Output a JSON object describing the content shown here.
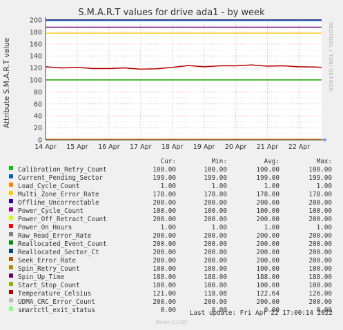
{
  "title": "S.M.A.R.T values for drive ada1 - by week",
  "side_label": "RRDTOOL / TOBI OETIKER",
  "footer": "Munin 2.0.65",
  "last_update": "Last update: Fri Apr 22 17:00:14 2022",
  "legend_headers": {
    "cur": "Cur:",
    "min": "Min:",
    "avg": "Avg:",
    "max": "Max:"
  },
  "chart_data": {
    "type": "line",
    "title": "S.M.A.R.T values for drive ada1 - by week",
    "xlabel": "",
    "ylabel": "Attribute S.M.A.R.T value",
    "ylim": [
      0,
      200
    ],
    "yticks": [
      0,
      20,
      40,
      60,
      80,
      100,
      120,
      140,
      160,
      180,
      200
    ],
    "xlim": [
      "2022-04-14 00:00",
      "2022-04-22 17:00"
    ],
    "xticks": [
      "14 Apr",
      "15 Apr",
      "16 Apr",
      "17 Apr",
      "18 Apr",
      "19 Apr",
      "20 Apr",
      "21 Apr",
      "22 Apr"
    ],
    "grid": true,
    "legend_position": "bottom",
    "temperature_x": [
      "2022-04-14 00:00",
      "2022-04-14 12:00",
      "2022-04-15 00:00",
      "2022-04-15 12:00",
      "2022-04-16 00:00",
      "2022-04-16 12:00",
      "2022-04-17 00:00",
      "2022-04-17 12:00",
      "2022-04-18 00:00",
      "2022-04-18 12:00",
      "2022-04-19 00:00",
      "2022-04-19 12:00",
      "2022-04-20 00:00",
      "2022-04-20 12:00",
      "2022-04-21 00:00",
      "2022-04-21 12:00",
      "2022-04-22 00:00",
      "2022-04-22 12:00",
      "2022-04-22 17:00"
    ],
    "series": [
      {
        "name": "Calibration_Retry_Count",
        "color": "#00cc00",
        "cur": "100.00",
        "min": "100.00",
        "avg": "100.00",
        "max": "100.00"
      },
      {
        "name": "Current_Pending_Sector",
        "color": "#0066b3",
        "cur": "199.00",
        "min": "199.00",
        "avg": "199.00",
        "max": "199.00"
      },
      {
        "name": "Load_Cycle_Count",
        "color": "#ff8000",
        "cur": "1.00",
        "min": "1.00",
        "avg": "1.00",
        "max": "1.00"
      },
      {
        "name": "Multi_Zone_Error_Rate",
        "color": "#ffcc00",
        "cur": "178.00",
        "min": "178.00",
        "avg": "178.00",
        "max": "178.00"
      },
      {
        "name": "Offline_Uncorrectable",
        "color": "#330099",
        "cur": "200.00",
        "min": "200.00",
        "avg": "200.00",
        "max": "200.00"
      },
      {
        "name": "Power_Cycle_Count",
        "color": "#990099",
        "cur": "100.00",
        "min": "100.00",
        "avg": "100.00",
        "max": "100.00"
      },
      {
        "name": "Power_Off_Retract_Count",
        "color": "#ccff00",
        "cur": "200.00",
        "min": "200.00",
        "avg": "200.00",
        "max": "200.00"
      },
      {
        "name": "Power_On_Hours",
        "color": "#ff0000",
        "cur": "1.00",
        "min": "1.00",
        "avg": "1.00",
        "max": "1.00"
      },
      {
        "name": "Raw_Read_Error_Rate",
        "color": "#808080",
        "cur": "200.00",
        "min": "200.00",
        "avg": "200.00",
        "max": "200.00"
      },
      {
        "name": "Reallocated_Event_Count",
        "color": "#008f00",
        "cur": "200.00",
        "min": "200.00",
        "avg": "200.00",
        "max": "200.00"
      },
      {
        "name": "Reallocated_Sector_Ct",
        "color": "#00487d",
        "cur": "200.00",
        "min": "200.00",
        "avg": "200.00",
        "max": "200.00"
      },
      {
        "name": "Seek_Error_Rate",
        "color": "#b35a00",
        "cur": "200.00",
        "min": "200.00",
        "avg": "200.00",
        "max": "200.00"
      },
      {
        "name": "Spin_Retry_Count",
        "color": "#b38f00",
        "cur": "100.00",
        "min": "100.00",
        "avg": "100.00",
        "max": "100.00"
      },
      {
        "name": "Spin_Up_Time",
        "color": "#6b006b",
        "cur": "188.00",
        "min": "188.00",
        "avg": "188.00",
        "max": "188.00"
      },
      {
        "name": "Start_Stop_Count",
        "color": "#8fb300",
        "cur": "100.00",
        "min": "100.00",
        "avg": "100.00",
        "max": "100.00"
      },
      {
        "name": "Temperature_Celsius",
        "color": "#b30000",
        "cur": "121.00",
        "min": "118.08",
        "avg": "122.64",
        "max": "126.00",
        "values": [
          122,
          120,
          121,
          119,
          119,
          120,
          118,
          118.5,
          121,
          124,
          122,
          123.5,
          123.5,
          125,
          123,
          123.5,
          122,
          121.5,
          121
        ]
      },
      {
        "name": "UDMA_CRC_Error_Count",
        "color": "#bebebe",
        "cur": "200.00",
        "min": "200.00",
        "avg": "200.00",
        "max": "200.00"
      },
      {
        "name": "smartctl_exit_status",
        "color": "#80ff80",
        "cur": "0.00",
        "min": "0.00",
        "avg": "0.00",
        "max": "0.00"
      }
    ]
  }
}
